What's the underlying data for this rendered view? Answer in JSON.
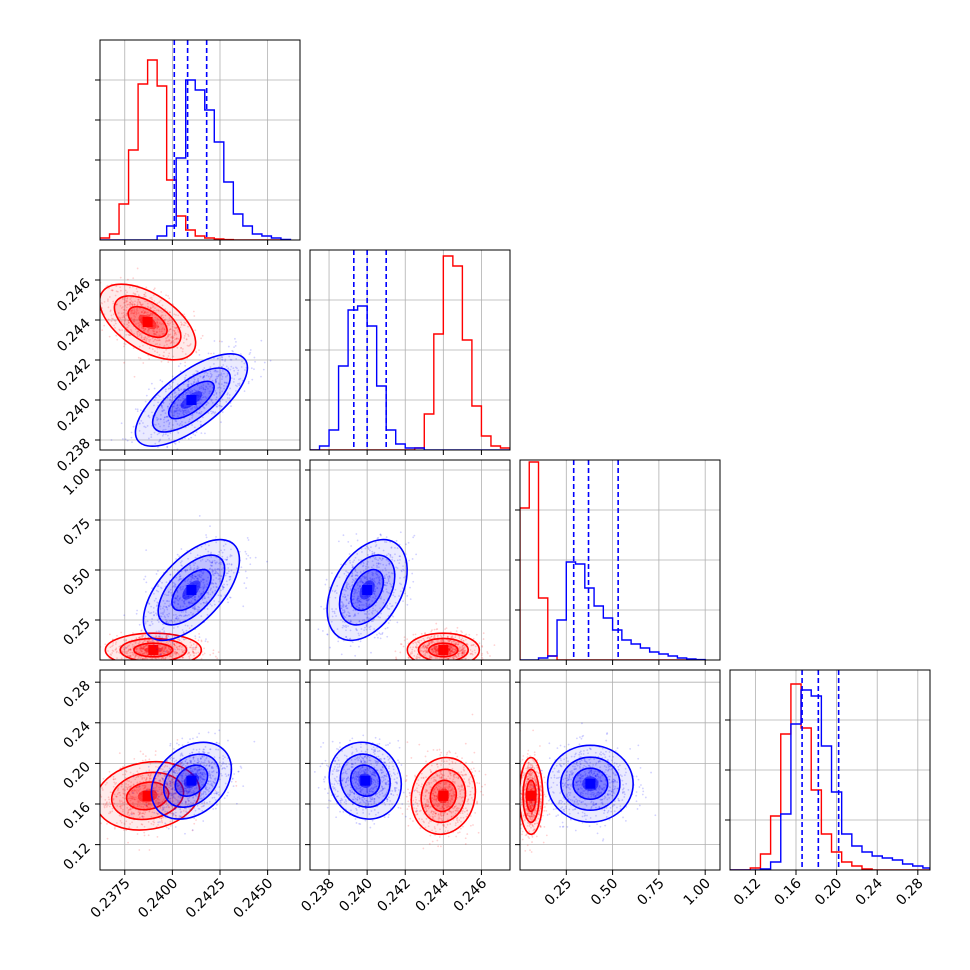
{
  "figure": {
    "type": "corner-plot",
    "parameters": 4
  },
  "colors": {
    "red": "#ff0000",
    "blue": "#0000ff",
    "grid": "#b0b0b0",
    "axis": "#000000"
  },
  "chart_data": [
    {
      "type": "histogram",
      "row": 0,
      "col": 0,
      "param": 0,
      "xlim": [
        0.2362,
        0.2467
      ],
      "ylim": [
        0,
        1
      ],
      "xticks": [
        0.2375,
        0.24,
        0.2425,
        0.245
      ],
      "yticks": [
        0.2,
        0.4,
        0.6,
        0.8
      ],
      "show_xlabels": false,
      "show_ylabels": false,
      "bins": [
        0.2362,
        0.2367,
        0.2372,
        0.2377,
        0.2382,
        0.2387,
        0.2392,
        0.2397,
        0.2402,
        0.2407,
        0.2412,
        0.2417,
        0.2422,
        0.2427,
        0.2432,
        0.2437,
        0.2442,
        0.2447,
        0.2452,
        0.2457,
        0.2462
      ],
      "series": [
        {
          "name": "red",
          "color": "#ff0000",
          "counts": [
            0.01,
            0.03,
            0.18,
            0.45,
            0.78,
            0.9,
            0.77,
            0.3,
            0.12,
            0.05,
            0.02,
            0.01,
            0.005,
            0.002,
            0,
            0,
            0,
            0,
            0,
            0
          ]
        },
        {
          "name": "blue",
          "color": "#0000ff",
          "counts": [
            0,
            0,
            0,
            0,
            0,
            0,
            0.02,
            0.07,
            0.41,
            0.8,
            0.75,
            0.65,
            0.49,
            0.29,
            0.13,
            0.07,
            0.03,
            0.02,
            0.01,
            0.003
          ]
        }
      ],
      "quantiles": [
        0.2401,
        0.2408,
        0.2418
      ]
    },
    {
      "type": "scatter-contour",
      "row": 1,
      "col": 0,
      "xparam": 0,
      "yparam": 1,
      "xlim": [
        0.2362,
        0.2467
      ],
      "ylim": [
        0.2375,
        0.2475
      ],
      "xticks": [
        0.2375,
        0.24,
        0.2425,
        0.245
      ],
      "yticks": [
        0.238,
        0.24,
        0.242,
        0.244,
        0.246
      ],
      "ytick_labels": [
        "0.238",
        "0.240",
        "0.242",
        "0.244",
        "0.246"
      ],
      "show_xlabels": false,
      "show_ylabels": true,
      "series": [
        {
          "name": "red",
          "color": "#ff0000",
          "mean": [
            0.2387,
            0.2439
          ],
          "sd": [
            0.0012,
            0.0009
          ],
          "rho": -0.55
        },
        {
          "name": "blue",
          "color": "#0000ff",
          "mean": [
            0.241,
            0.24
          ],
          "sd": [
            0.0014,
            0.0011
          ],
          "rho": 0.7
        }
      ]
    },
    {
      "type": "histogram",
      "row": 1,
      "col": 1,
      "param": 1,
      "xlim": [
        0.237,
        0.2475
      ],
      "ylim": [
        0,
        1
      ],
      "xticks": [
        0.238,
        0.24,
        0.242,
        0.244,
        0.246
      ],
      "yticks": [
        0.25,
        0.5,
        0.75
      ],
      "show_xlabels": false,
      "show_ylabels": false,
      "bins": [
        0.237,
        0.2375,
        0.238,
        0.2385,
        0.239,
        0.2395,
        0.24,
        0.2405,
        0.241,
        0.2415,
        0.242,
        0.2425,
        0.243,
        0.2435,
        0.244,
        0.2445,
        0.245,
        0.2455,
        0.246,
        0.2465,
        0.247,
        0.2475
      ],
      "series": [
        {
          "name": "red",
          "color": "#ff0000",
          "counts": [
            0,
            0,
            0,
            0,
            0,
            0,
            0,
            0,
            0,
            0,
            0,
            0.01,
            0.18,
            0.58,
            0.97,
            0.92,
            0.55,
            0.22,
            0.07,
            0.02,
            0.01
          ]
        },
        {
          "name": "blue",
          "color": "#0000ff",
          "counts": [
            0,
            0.02,
            0.1,
            0.42,
            0.7,
            0.72,
            0.62,
            0.32,
            0.1,
            0.03,
            0.01,
            0.01,
            0,
            0,
            0,
            0,
            0,
            0,
            0,
            0,
            0
          ]
        }
      ],
      "quantiles": [
        0.2393,
        0.24,
        0.241
      ]
    },
    {
      "type": "scatter-contour",
      "row": 2,
      "col": 0,
      "xparam": 0,
      "yparam": 2,
      "xlim": [
        0.2362,
        0.2467
      ],
      "ylim": [
        0.05,
        1.05
      ],
      "xticks": [
        0.2375,
        0.24,
        0.2425,
        0.245
      ],
      "yticks": [
        0.25,
        0.5,
        0.75,
        1.0
      ],
      "ytick_labels": [
        "0.25",
        "0.50",
        "0.75",
        "1.00"
      ],
      "show_xlabels": false,
      "show_ylabels": true,
      "series": [
        {
          "name": "red",
          "color": "#ff0000",
          "mean": [
            0.239,
            0.1
          ],
          "sd": [
            0.0012,
            0.04
          ],
          "rho": 0.0
        },
        {
          "name": "blue",
          "color": "#0000ff",
          "mean": [
            0.241,
            0.4
          ],
          "sd": [
            0.0012,
            0.12
          ],
          "rho": 0.6
        }
      ]
    },
    {
      "type": "scatter-contour",
      "row": 2,
      "col": 1,
      "xparam": 1,
      "yparam": 2,
      "xlim": [
        0.237,
        0.2475
      ],
      "ylim": [
        0.05,
        1.05
      ],
      "xticks": [
        0.238,
        0.24,
        0.242,
        0.244,
        0.246
      ],
      "yticks": [
        0.25,
        0.5,
        0.75,
        1.0
      ],
      "show_xlabels": false,
      "show_ylabels": false,
      "series": [
        {
          "name": "red",
          "color": "#ff0000",
          "mean": [
            0.244,
            0.1
          ],
          "sd": [
            0.0009,
            0.04
          ],
          "rho": 0.0
        },
        {
          "name": "blue",
          "color": "#0000ff",
          "mean": [
            0.24,
            0.4
          ],
          "sd": [
            0.001,
            0.12
          ],
          "rho": 0.4
        }
      ]
    },
    {
      "type": "histogram",
      "row": 2,
      "col": 2,
      "param": 2,
      "xlim": [
        0.0,
        1.08
      ],
      "ylim": [
        0,
        1
      ],
      "xticks": [
        0.25,
        0.5,
        0.75,
        1.0
      ],
      "yticks": [
        0.25,
        0.5,
        0.75
      ],
      "show_xlabels": false,
      "show_ylabels": false,
      "bins": [
        0.0,
        0.05,
        0.1,
        0.15,
        0.2,
        0.25,
        0.3,
        0.35,
        0.4,
        0.45,
        0.5,
        0.55,
        0.6,
        0.65,
        0.7,
        0.75,
        0.8,
        0.85,
        0.9,
        0.95,
        1.0
      ],
      "series": [
        {
          "name": "red",
          "color": "#ff0000",
          "counts": [
            0.76,
            0.99,
            0.31,
            0.02,
            0,
            0,
            0,
            0,
            0,
            0,
            0,
            0,
            0,
            0,
            0,
            0,
            0,
            0,
            0,
            0
          ]
        },
        {
          "name": "blue",
          "color": "#0000ff",
          "counts": [
            0,
            0,
            0.01,
            0.02,
            0.2,
            0.49,
            0.48,
            0.36,
            0.27,
            0.21,
            0.15,
            0.1,
            0.08,
            0.06,
            0.04,
            0.03,
            0.02,
            0.01,
            0.005,
            0.002
          ]
        }
      ],
      "quantiles": [
        0.29,
        0.37,
        0.53
      ]
    },
    {
      "type": "scatter-contour",
      "row": 3,
      "col": 0,
      "xparam": 0,
      "yparam": 3,
      "xlim": [
        0.2362,
        0.2467
      ],
      "ylim": [
        0.095,
        0.292
      ],
      "xticks": [
        0.2375,
        0.24,
        0.2425,
        0.245
      ],
      "xtick_labels": [
        "0.2375",
        "0.2400",
        "0.2425",
        "0.2450"
      ],
      "yticks": [
        0.12,
        0.16,
        0.2,
        0.24,
        0.28
      ],
      "ytick_labels": [
        "0.12",
        "0.16",
        "0.20",
        "0.24",
        "0.28"
      ],
      "show_xlabels": true,
      "show_ylabels": true,
      "series": [
        {
          "name": "red",
          "color": "#ff0000",
          "mean": [
            0.2387,
            0.168
          ],
          "sd": [
            0.0013,
            0.016
          ],
          "rho": 0.15
        },
        {
          "name": "blue",
          "color": "#0000ff",
          "mean": [
            0.241,
            0.183
          ],
          "sd": [
            0.001,
            0.018
          ],
          "rho": 0.3
        }
      ]
    },
    {
      "type": "scatter-contour",
      "row": 3,
      "col": 1,
      "xparam": 1,
      "yparam": 3,
      "xlim": [
        0.237,
        0.2475
      ],
      "ylim": [
        0.095,
        0.292
      ],
      "xticks": [
        0.238,
        0.24,
        0.242,
        0.244,
        0.246
      ],
      "xtick_labels": [
        "0.238",
        "0.240",
        "0.242",
        "0.244",
        "0.246"
      ],
      "yticks": [
        0.12,
        0.16,
        0.2,
        0.24,
        0.28
      ],
      "show_xlabels": true,
      "show_ylabels": false,
      "series": [
        {
          "name": "red",
          "color": "#ff0000",
          "mean": [
            0.244,
            0.168
          ],
          "sd": [
            0.0008,
            0.018
          ],
          "rho": 0.1
        },
        {
          "name": "blue",
          "color": "#0000ff",
          "mean": [
            0.2399,
            0.183
          ],
          "sd": [
            0.0009,
            0.018
          ],
          "rho": -0.1
        }
      ]
    },
    {
      "type": "scatter-contour",
      "row": 3,
      "col": 2,
      "xparam": 2,
      "yparam": 3,
      "xlim": [
        0.0,
        1.08
      ],
      "ylim": [
        0.095,
        0.292
      ],
      "xticks": [
        0.25,
        0.5,
        0.75,
        1.0
      ],
      "xtick_labels": [
        "0.25",
        "0.50",
        "0.75",
        "1.00"
      ],
      "yticks": [
        0.12,
        0.16,
        0.2,
        0.24,
        0.28
      ],
      "show_xlabels": true,
      "show_ylabels": false,
      "series": [
        {
          "name": "red",
          "color": "#ff0000",
          "mean": [
            0.06,
            0.168
          ],
          "sd": [
            0.03,
            0.018
          ],
          "rho": 0.0
        },
        {
          "name": "blue",
          "color": "#0000ff",
          "mean": [
            0.38,
            0.18
          ],
          "sd": [
            0.11,
            0.018
          ],
          "rho": 0.0
        }
      ]
    },
    {
      "type": "histogram",
      "row": 3,
      "col": 3,
      "param": 3,
      "xlim": [
        0.095,
        0.292
      ],
      "ylim": [
        0,
        1
      ],
      "xticks": [
        0.12,
        0.16,
        0.2,
        0.24,
        0.28
      ],
      "xtick_labels": [
        "0.12",
        "0.16",
        "0.20",
        "0.24",
        "0.28"
      ],
      "yticks": [
        0.25,
        0.5,
        0.75
      ],
      "show_xlabels": true,
      "show_ylabels": false,
      "bins": [
        0.095,
        0.105,
        0.115,
        0.125,
        0.135,
        0.145,
        0.155,
        0.165,
        0.175,
        0.185,
        0.195,
        0.205,
        0.215,
        0.225,
        0.235,
        0.245,
        0.255,
        0.265,
        0.275,
        0.285,
        0.292
      ],
      "series": [
        {
          "name": "red",
          "color": "#ff0000",
          "counts": [
            0,
            0,
            0.01,
            0.08,
            0.27,
            0.68,
            0.93,
            0.71,
            0.4,
            0.18,
            0.09,
            0.04,
            0.02,
            0.005,
            0,
            0,
            0,
            0,
            0,
            0
          ]
        },
        {
          "name": "blue",
          "color": "#0000ff",
          "counts": [
            0,
            0,
            0,
            0.005,
            0.04,
            0.28,
            0.73,
            0.9,
            0.87,
            0.62,
            0.39,
            0.18,
            0.12,
            0.09,
            0.07,
            0.06,
            0.05,
            0.03,
            0.02,
            0.01
          ]
        }
      ],
      "quantiles": [
        0.166,
        0.182,
        0.202
      ]
    }
  ]
}
